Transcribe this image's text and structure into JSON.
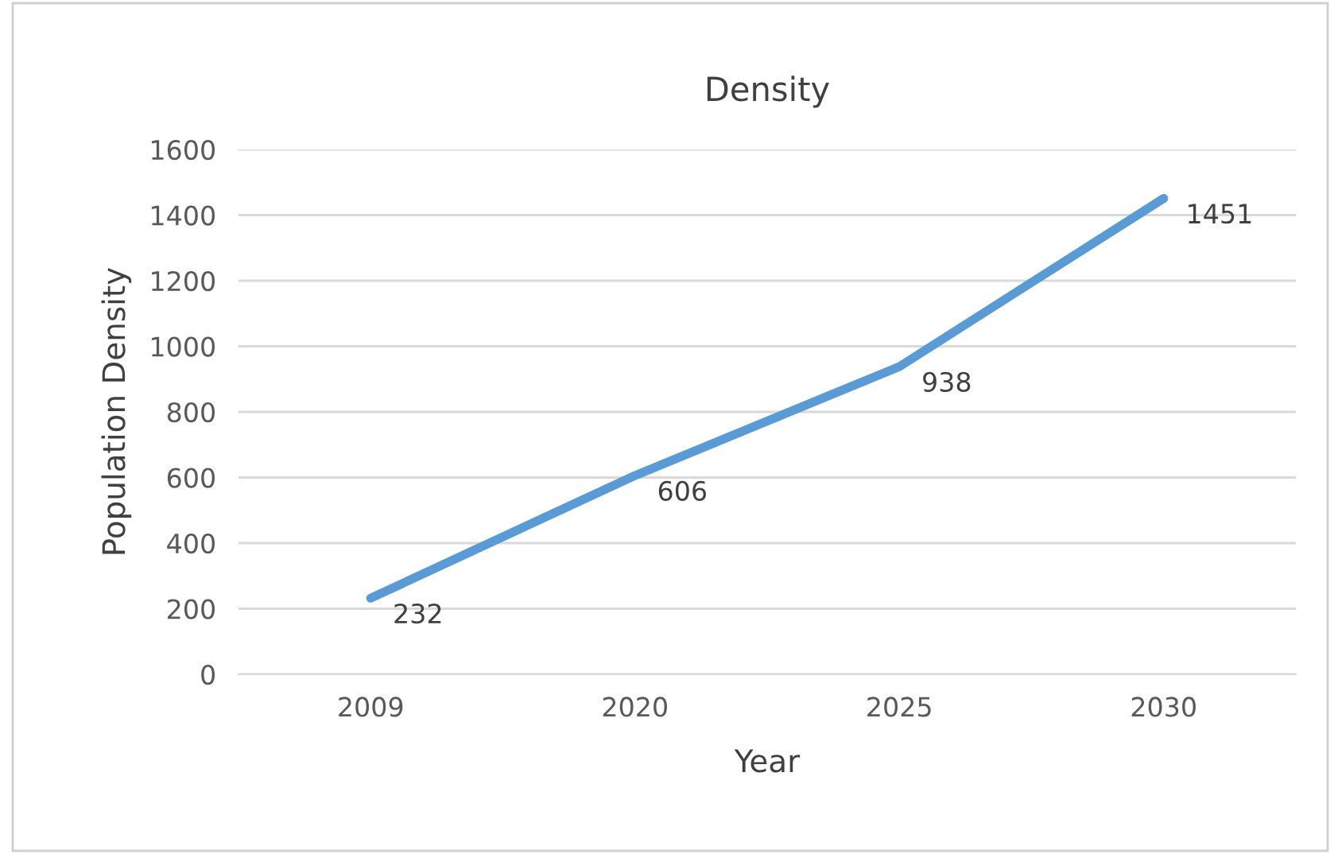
{
  "chart_data": {
    "type": "line",
    "title": "Density",
    "xlabel": "Year",
    "ylabel": "Population Density",
    "categories": [
      "2009",
      "2020",
      "2025",
      "2030"
    ],
    "series": [
      {
        "color": "#5b9bd5",
        "values": [
          232,
          606,
          938,
          1451
        ]
      }
    ],
    "ylim": [
      0,
      1600
    ],
    "yticks": [
      0,
      200,
      400,
      600,
      800,
      1000,
      1200,
      1400,
      1600
    ],
    "grid": "y",
    "data_labels": true,
    "marker": "none",
    "line_style": "solid"
  }
}
